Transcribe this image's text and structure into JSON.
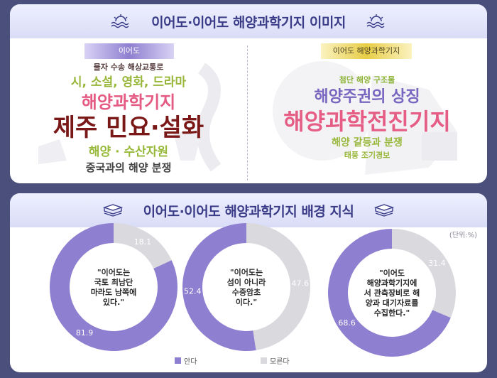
{
  "top_panel": {
    "title": "이어도·이어도 해양과학기지 이미지",
    "left_tag": "이어도",
    "right_tag": "이어도 해양과학기지",
    "left_words": [
      {
        "text": "물자 수송 해상교통로",
        "color": "#5a4040",
        "size": 11
      },
      {
        "text": "시, 소설, 영화, 드라마",
        "color": "#98b73a",
        "size": 17
      },
      {
        "text": "해양과학기지",
        "color": "#e45a82",
        "size": 24
      },
      {
        "text": "제주 민요·설화",
        "color": "#7a1818",
        "size": 34
      },
      {
        "text": "해양 · 수산자원",
        "color": "#97b93a",
        "size": 17
      },
      {
        "text": "중국과의 해양 분쟁",
        "color": "#444444",
        "size": 15
      }
    ],
    "right_words": [
      {
        "text": "첨단 해양 구조물",
        "color": "#8eb43a",
        "size": 11
      },
      {
        "text": "해양주권의 상징",
        "color": "#7865bf",
        "size": 22
      },
      {
        "text": "해양과학전진기지",
        "color": "#e55d84",
        "size": 32
      },
      {
        "text": "해양 갈등과 분쟁",
        "color": "#98b73a",
        "size": 14
      },
      {
        "text": "태풍 조기경보",
        "color": "#98b73a",
        "size": 11
      }
    ]
  },
  "bottom_panel": {
    "title": "이어도·이어도 해양과학기지 배경 지식",
    "unit": "(단위:%)"
  },
  "chart_data": {
    "type": "pie",
    "donut": true,
    "unit": "%",
    "series_names": [
      "안다",
      "모른다"
    ],
    "colors": {
      "know": "#8f7fd0",
      "dont_know": "#d9d9de"
    },
    "charts": [
      {
        "question": "\"이어도는 국토 최남단 마라도 남쪽에 있다.\"",
        "lines": [
          "\"이어도는",
          "국토 최남단",
          "마라도 남쪽에",
          "있다.\""
        ],
        "know": 81.9,
        "dont_know": 18.1
      },
      {
        "question": "\"이어도는 섬이 아니라 수중암초 이다.\"",
        "lines": [
          "\"이어도는",
          "섬이 아니라",
          "수중암초",
          "이다.\""
        ],
        "know": 52.4,
        "dont_know": 47.6
      },
      {
        "question": "\"이어도 해양과학기지에서 관측장비로 해양과 대기자료를 수집한다.\"",
        "lines": [
          "\"이어도",
          "해양과학기지에",
          "서 관측장비로 해",
          "양과 대기자료를",
          "수집한다.\""
        ],
        "know": 68.6,
        "dont_know": 31.4
      }
    ]
  }
}
